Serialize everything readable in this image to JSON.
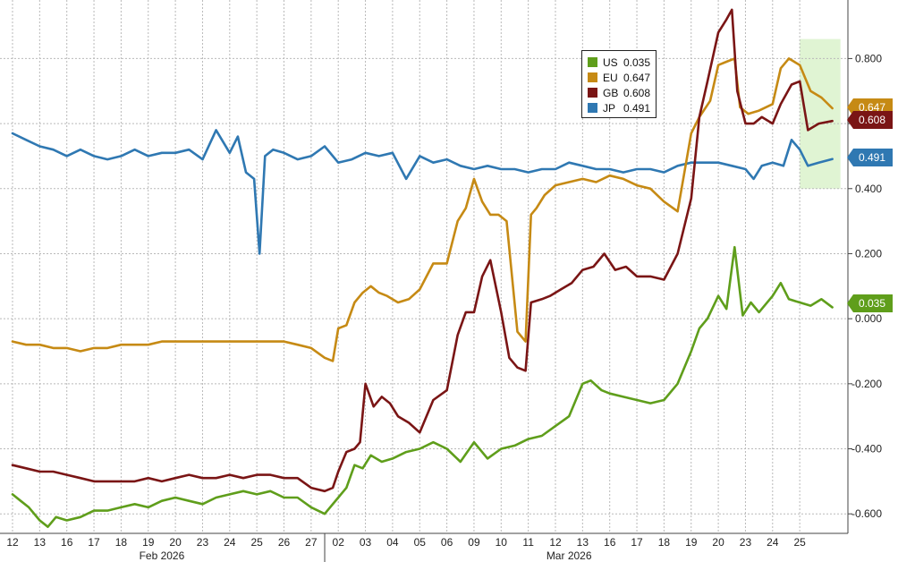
{
  "chart_data": {
    "type": "line",
    "ylim": [
      -0.66,
      0.98
    ],
    "y_ticks": [
      "0.800",
      "0.600",
      "0.400",
      "0.200",
      "0.000",
      "-0.200",
      "-0.400",
      "-0.600"
    ],
    "y_tick_values": [
      0.8,
      0.6,
      0.4,
      0.2,
      0.0,
      -0.2,
      -0.4,
      -0.6
    ],
    "x_ticks": [
      "12",
      "13",
      "16",
      "17",
      "18",
      "19",
      "20",
      "23",
      "24",
      "25",
      "26",
      "27",
      "02",
      "03",
      "04",
      "05",
      "06",
      "09",
      "10",
      "11",
      "12",
      "13",
      "16",
      "17",
      "18",
      "19",
      "20",
      "23",
      "24",
      "25"
    ],
    "month_labels": [
      "Feb 2026",
      "Mar 2026"
    ],
    "grid": true,
    "legend_position": "top-right",
    "highlight": {
      "x_start": 29.0,
      "x_end": 30.5,
      "color": "#d6f0c4"
    },
    "series": [
      {
        "name": "US",
        "value_label": "0.035",
        "color": "#5f9e1b",
        "points": [
          [
            0,
            -0.54
          ],
          [
            0.3,
            -0.56
          ],
          [
            0.6,
            -0.58
          ],
          [
            1,
            -0.62
          ],
          [
            1.3,
            -0.64
          ],
          [
            1.6,
            -0.61
          ],
          [
            2,
            -0.62
          ],
          [
            2.5,
            -0.61
          ],
          [
            3,
            -0.59
          ],
          [
            3.5,
            -0.59
          ],
          [
            4,
            -0.58
          ],
          [
            4.5,
            -0.57
          ],
          [
            5,
            -0.58
          ],
          [
            5.5,
            -0.56
          ],
          [
            6,
            -0.55
          ],
          [
            6.5,
            -0.56
          ],
          [
            7,
            -0.57
          ],
          [
            7.5,
            -0.55
          ],
          [
            8,
            -0.54
          ],
          [
            8.5,
            -0.53
          ],
          [
            9,
            -0.54
          ],
          [
            9.5,
            -0.53
          ],
          [
            10,
            -0.55
          ],
          [
            10.5,
            -0.55
          ],
          [
            11,
            -0.58
          ],
          [
            11.5,
            -0.6
          ],
          [
            12,
            -0.55
          ],
          [
            12.3,
            -0.52
          ],
          [
            12.6,
            -0.45
          ],
          [
            12.9,
            -0.46
          ],
          [
            13.2,
            -0.42
          ],
          [
            13.6,
            -0.44
          ],
          [
            14,
            -0.43
          ],
          [
            14.5,
            -0.41
          ],
          [
            15,
            -0.4
          ],
          [
            15.5,
            -0.38
          ],
          [
            16,
            -0.4
          ],
          [
            16.5,
            -0.44
          ],
          [
            17,
            -0.38
          ],
          [
            17.5,
            -0.43
          ],
          [
            18,
            -0.4
          ],
          [
            18.5,
            -0.39
          ],
          [
            19,
            -0.37
          ],
          [
            19.5,
            -0.36
          ],
          [
            20,
            -0.33
          ],
          [
            20.5,
            -0.3
          ],
          [
            21,
            -0.2
          ],
          [
            21.3,
            -0.19
          ],
          [
            21.7,
            -0.22
          ],
          [
            22,
            -0.23
          ],
          [
            22.5,
            -0.24
          ],
          [
            23,
            -0.25
          ],
          [
            23.5,
            -0.26
          ],
          [
            24,
            -0.25
          ],
          [
            24.5,
            -0.2
          ],
          [
            25,
            -0.1
          ],
          [
            25.3,
            -0.03
          ],
          [
            25.6,
            0.0
          ],
          [
            26,
            0.07
          ],
          [
            26.3,
            0.03
          ],
          [
            26.6,
            0.22
          ],
          [
            26.9,
            0.01
          ],
          [
            27.2,
            0.05
          ],
          [
            27.5,
            0.02
          ],
          [
            28,
            0.07
          ],
          [
            28.3,
            0.11
          ],
          [
            28.6,
            0.06
          ],
          [
            29,
            0.05
          ],
          [
            29.4,
            0.04
          ],
          [
            29.8,
            0.06
          ],
          [
            30.2,
            0.035
          ]
        ]
      },
      {
        "name": "EU",
        "value_label": "0.647",
        "color": "#c68a14",
        "points": [
          [
            0,
            -0.07
          ],
          [
            0.5,
            -0.08
          ],
          [
            1,
            -0.08
          ],
          [
            1.5,
            -0.09
          ],
          [
            2,
            -0.09
          ],
          [
            2.5,
            -0.1
          ],
          [
            3,
            -0.09
          ],
          [
            3.5,
            -0.09
          ],
          [
            4,
            -0.08
          ],
          [
            4.5,
            -0.08
          ],
          [
            5,
            -0.08
          ],
          [
            5.5,
            -0.07
          ],
          [
            6,
            -0.07
          ],
          [
            6.5,
            -0.07
          ],
          [
            7,
            -0.07
          ],
          [
            7.5,
            -0.07
          ],
          [
            8,
            -0.07
          ],
          [
            8.5,
            -0.07
          ],
          [
            9,
            -0.07
          ],
          [
            9.5,
            -0.07
          ],
          [
            10,
            -0.07
          ],
          [
            10.5,
            -0.08
          ],
          [
            11,
            -0.09
          ],
          [
            11.5,
            -0.12
          ],
          [
            11.8,
            -0.13
          ],
          [
            12,
            -0.03
          ],
          [
            12.3,
            -0.02
          ],
          [
            12.6,
            0.05
          ],
          [
            12.9,
            0.08
          ],
          [
            13.2,
            0.1
          ],
          [
            13.5,
            0.08
          ],
          [
            13.8,
            0.07
          ],
          [
            14.2,
            0.05
          ],
          [
            14.6,
            0.06
          ],
          [
            15,
            0.09
          ],
          [
            15.5,
            0.17
          ],
          [
            16,
            0.17
          ],
          [
            16.4,
            0.3
          ],
          [
            16.7,
            0.34
          ],
          [
            17,
            0.43
          ],
          [
            17.3,
            0.36
          ],
          [
            17.6,
            0.32
          ],
          [
            17.9,
            0.32
          ],
          [
            18.2,
            0.3
          ],
          [
            18.6,
            -0.04
          ],
          [
            18.9,
            -0.07
          ],
          [
            19.1,
            0.32
          ],
          [
            19.3,
            0.34
          ],
          [
            19.6,
            0.38
          ],
          [
            20,
            0.41
          ],
          [
            20.5,
            0.42
          ],
          [
            21,
            0.43
          ],
          [
            21.5,
            0.42
          ],
          [
            22,
            0.44
          ],
          [
            22.5,
            0.43
          ],
          [
            23,
            0.41
          ],
          [
            23.5,
            0.4
          ],
          [
            24,
            0.36
          ],
          [
            24.5,
            0.33
          ],
          [
            25,
            0.57
          ],
          [
            25.3,
            0.62
          ],
          [
            25.7,
            0.67
          ],
          [
            26,
            0.78
          ],
          [
            26.3,
            0.79
          ],
          [
            26.6,
            0.8
          ],
          [
            26.8,
            0.65
          ],
          [
            27.1,
            0.63
          ],
          [
            27.5,
            0.64
          ],
          [
            28,
            0.66
          ],
          [
            28.3,
            0.77
          ],
          [
            28.6,
            0.8
          ],
          [
            29,
            0.78
          ],
          [
            29.4,
            0.7
          ],
          [
            29.8,
            0.68
          ],
          [
            30.2,
            0.647
          ]
        ]
      },
      {
        "name": "GB",
        "value_label": "0.608",
        "color": "#7a1515",
        "points": [
          [
            0,
            -0.45
          ],
          [
            0.5,
            -0.46
          ],
          [
            1,
            -0.47
          ],
          [
            1.5,
            -0.47
          ],
          [
            2,
            -0.48
          ],
          [
            2.5,
            -0.49
          ],
          [
            3,
            -0.5
          ],
          [
            3.5,
            -0.5
          ],
          [
            4,
            -0.5
          ],
          [
            4.5,
            -0.5
          ],
          [
            5,
            -0.49
          ],
          [
            5.5,
            -0.5
          ],
          [
            6,
            -0.49
          ],
          [
            6.5,
            -0.48
          ],
          [
            7,
            -0.49
          ],
          [
            7.5,
            -0.49
          ],
          [
            8,
            -0.48
          ],
          [
            8.5,
            -0.49
          ],
          [
            9,
            -0.48
          ],
          [
            9.5,
            -0.48
          ],
          [
            10,
            -0.49
          ],
          [
            10.5,
            -0.49
          ],
          [
            11,
            -0.52
          ],
          [
            11.5,
            -0.53
          ],
          [
            11.8,
            -0.52
          ],
          [
            12,
            -0.47
          ],
          [
            12.3,
            -0.41
          ],
          [
            12.6,
            -0.4
          ],
          [
            12.8,
            -0.38
          ],
          [
            13,
            -0.2
          ],
          [
            13.3,
            -0.27
          ],
          [
            13.6,
            -0.24
          ],
          [
            13.9,
            -0.26
          ],
          [
            14.2,
            -0.3
          ],
          [
            14.6,
            -0.32
          ],
          [
            15,
            -0.35
          ],
          [
            15.5,
            -0.25
          ],
          [
            16,
            -0.22
          ],
          [
            16.4,
            -0.05
          ],
          [
            16.7,
            0.02
          ],
          [
            17,
            0.02
          ],
          [
            17.3,
            0.13
          ],
          [
            17.6,
            0.18
          ],
          [
            18,
            0.02
          ],
          [
            18.3,
            -0.12
          ],
          [
            18.6,
            -0.15
          ],
          [
            18.9,
            -0.16
          ],
          [
            19.1,
            0.05
          ],
          [
            19.5,
            0.06
          ],
          [
            19.8,
            0.07
          ],
          [
            20.2,
            0.09
          ],
          [
            20.6,
            0.11
          ],
          [
            21,
            0.15
          ],
          [
            21.4,
            0.16
          ],
          [
            21.8,
            0.2
          ],
          [
            22.2,
            0.15
          ],
          [
            22.6,
            0.16
          ],
          [
            23,
            0.13
          ],
          [
            23.5,
            0.13
          ],
          [
            24,
            0.12
          ],
          [
            24.5,
            0.2
          ],
          [
            25,
            0.37
          ],
          [
            25.3,
            0.62
          ],
          [
            25.6,
            0.73
          ],
          [
            26,
            0.88
          ],
          [
            26.3,
            0.92
          ],
          [
            26.5,
            0.95
          ],
          [
            26.7,
            0.7
          ],
          [
            27,
            0.6
          ],
          [
            27.3,
            0.6
          ],
          [
            27.6,
            0.62
          ],
          [
            28,
            0.6
          ],
          [
            28.3,
            0.66
          ],
          [
            28.7,
            0.72
          ],
          [
            29,
            0.73
          ],
          [
            29.3,
            0.58
          ],
          [
            29.7,
            0.6
          ],
          [
            30.2,
            0.608
          ]
        ]
      },
      {
        "name": "JP",
        "value_label": "0.491",
        "color": "#2f78b2",
        "points": [
          [
            0,
            0.57
          ],
          [
            0.5,
            0.55
          ],
          [
            1,
            0.53
          ],
          [
            1.5,
            0.52
          ],
          [
            2,
            0.5
          ],
          [
            2.5,
            0.52
          ],
          [
            3,
            0.5
          ],
          [
            3.5,
            0.49
          ],
          [
            4,
            0.5
          ],
          [
            4.5,
            0.52
          ],
          [
            5,
            0.5
          ],
          [
            5.5,
            0.51
          ],
          [
            6,
            0.51
          ],
          [
            6.5,
            0.52
          ],
          [
            7,
            0.49
          ],
          [
            7.5,
            0.58
          ],
          [
            8,
            0.51
          ],
          [
            8.3,
            0.56
          ],
          [
            8.6,
            0.45
          ],
          [
            8.9,
            0.43
          ],
          [
            9.1,
            0.2
          ],
          [
            9.3,
            0.5
          ],
          [
            9.6,
            0.52
          ],
          [
            10,
            0.51
          ],
          [
            10.5,
            0.49
          ],
          [
            11,
            0.5
          ],
          [
            11.5,
            0.53
          ],
          [
            12,
            0.48
          ],
          [
            12.5,
            0.49
          ],
          [
            13,
            0.51
          ],
          [
            13.5,
            0.5
          ],
          [
            14,
            0.51
          ],
          [
            14.5,
            0.43
          ],
          [
            15,
            0.5
          ],
          [
            15.5,
            0.48
          ],
          [
            16,
            0.49
          ],
          [
            16.5,
            0.47
          ],
          [
            17,
            0.46
          ],
          [
            17.5,
            0.47
          ],
          [
            18,
            0.46
          ],
          [
            18.5,
            0.46
          ],
          [
            19,
            0.45
          ],
          [
            19.5,
            0.46
          ],
          [
            20,
            0.46
          ],
          [
            20.5,
            0.48
          ],
          [
            21,
            0.47
          ],
          [
            21.5,
            0.46
          ],
          [
            22,
            0.46
          ],
          [
            22.5,
            0.45
          ],
          [
            23,
            0.46
          ],
          [
            23.5,
            0.46
          ],
          [
            24,
            0.45
          ],
          [
            24.5,
            0.47
          ],
          [
            25,
            0.48
          ],
          [
            25.5,
            0.48
          ],
          [
            26,
            0.48
          ],
          [
            26.5,
            0.47
          ],
          [
            27,
            0.46
          ],
          [
            27.3,
            0.43
          ],
          [
            27.6,
            0.47
          ],
          [
            28,
            0.48
          ],
          [
            28.4,
            0.47
          ],
          [
            28.7,
            0.55
          ],
          [
            29,
            0.52
          ],
          [
            29.3,
            0.47
          ],
          [
            29.7,
            0.48
          ],
          [
            30.2,
            0.491
          ]
        ]
      }
    ]
  }
}
